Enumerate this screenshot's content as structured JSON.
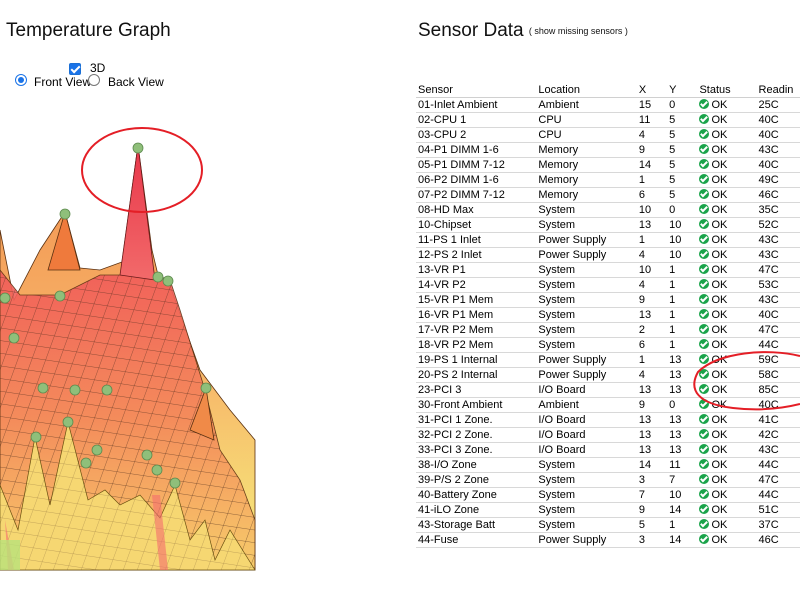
{
  "graph": {
    "title": "Temperature Graph",
    "toggle_3d_label": "3D",
    "toggle_3d_checked": true,
    "view_front_label": "Front View",
    "view_back_label": "Back View",
    "selected_view": "front"
  },
  "sensors": {
    "title": "Sensor Data",
    "toggle_link": "( show missing sensors )",
    "headers": [
      "Sensor",
      "Location",
      "X",
      "Y",
      "Status",
      "Readin"
    ],
    "rows": [
      [
        "01-Inlet Ambient",
        "Ambient",
        "15",
        "0",
        "OK",
        "25C"
      ],
      [
        "02-CPU 1",
        "CPU",
        "11",
        "5",
        "OK",
        "40C"
      ],
      [
        "03-CPU 2",
        "CPU",
        "4",
        "5",
        "OK",
        "40C"
      ],
      [
        "04-P1 DIMM 1-6",
        "Memory",
        "9",
        "5",
        "OK",
        "43C"
      ],
      [
        "05-P1 DIMM 7-12",
        "Memory",
        "14",
        "5",
        "OK",
        "40C"
      ],
      [
        "06-P2 DIMM 1-6",
        "Memory",
        "1",
        "5",
        "OK",
        "49C"
      ],
      [
        "07-P2 DIMM 7-12",
        "Memory",
        "6",
        "5",
        "OK",
        "46C"
      ],
      [
        "08-HD Max",
        "System",
        "10",
        "0",
        "OK",
        "35C"
      ],
      [
        "10-Chipset",
        "System",
        "13",
        "10",
        "OK",
        "52C"
      ],
      [
        "11-PS 1 Inlet",
        "Power Supply",
        "1",
        "10",
        "OK",
        "43C"
      ],
      [
        "12-PS 2 Inlet",
        "Power Supply",
        "4",
        "10",
        "OK",
        "43C"
      ],
      [
        "13-VR P1",
        "System",
        "10",
        "1",
        "OK",
        "47C"
      ],
      [
        "14-VR P2",
        "System",
        "4",
        "1",
        "OK",
        "53C"
      ],
      [
        "15-VR P1 Mem",
        "System",
        "9",
        "1",
        "OK",
        "43C"
      ],
      [
        "16-VR P1 Mem",
        "System",
        "13",
        "1",
        "OK",
        "40C"
      ],
      [
        "17-VR P2 Mem",
        "System",
        "2",
        "1",
        "OK",
        "47C"
      ],
      [
        "18-VR P2 Mem",
        "System",
        "6",
        "1",
        "OK",
        "44C"
      ],
      [
        "19-PS 1 Internal",
        "Power Supply",
        "1",
        "13",
        "OK",
        "59C"
      ],
      [
        "20-PS 2 Internal",
        "Power Supply",
        "4",
        "13",
        "OK",
        "58C"
      ],
      [
        "23-PCI 3",
        "I/O Board",
        "13",
        "13",
        "OK",
        "85C"
      ],
      [
        "30-Front Ambient",
        "Ambient",
        "9",
        "0",
        "OK",
        "40C"
      ],
      [
        "31-PCI 1 Zone.",
        "I/O Board",
        "13",
        "13",
        "OK",
        "41C"
      ],
      [
        "32-PCI 2 Zone.",
        "I/O Board",
        "13",
        "13",
        "OK",
        "42C"
      ],
      [
        "33-PCI 3 Zone.",
        "I/O Board",
        "13",
        "13",
        "OK",
        "43C"
      ],
      [
        "38-I/O Zone",
        "System",
        "14",
        "11",
        "OK",
        "44C"
      ],
      [
        "39-P/S 2 Zone",
        "System",
        "3",
        "7",
        "OK",
        "47C"
      ],
      [
        "40-Battery Zone",
        "System",
        "7",
        "10",
        "OK",
        "44C"
      ],
      [
        "41-iLO Zone",
        "System",
        "9",
        "14",
        "OK",
        "51C"
      ],
      [
        "43-Storage Batt",
        "System",
        "5",
        "1",
        "OK",
        "37C"
      ],
      [
        "44-Fuse",
        "Power Supply",
        "3",
        "14",
        "OK",
        "46C"
      ]
    ]
  },
  "colors": {
    "annotation": "#e41e26",
    "ok_icon": "#1aa34a",
    "surface_hot": "#ef3f4a",
    "surface_warm": "#f29a55",
    "surface_cool": "#f4e87a",
    "marker": "#8fbf7a"
  }
}
